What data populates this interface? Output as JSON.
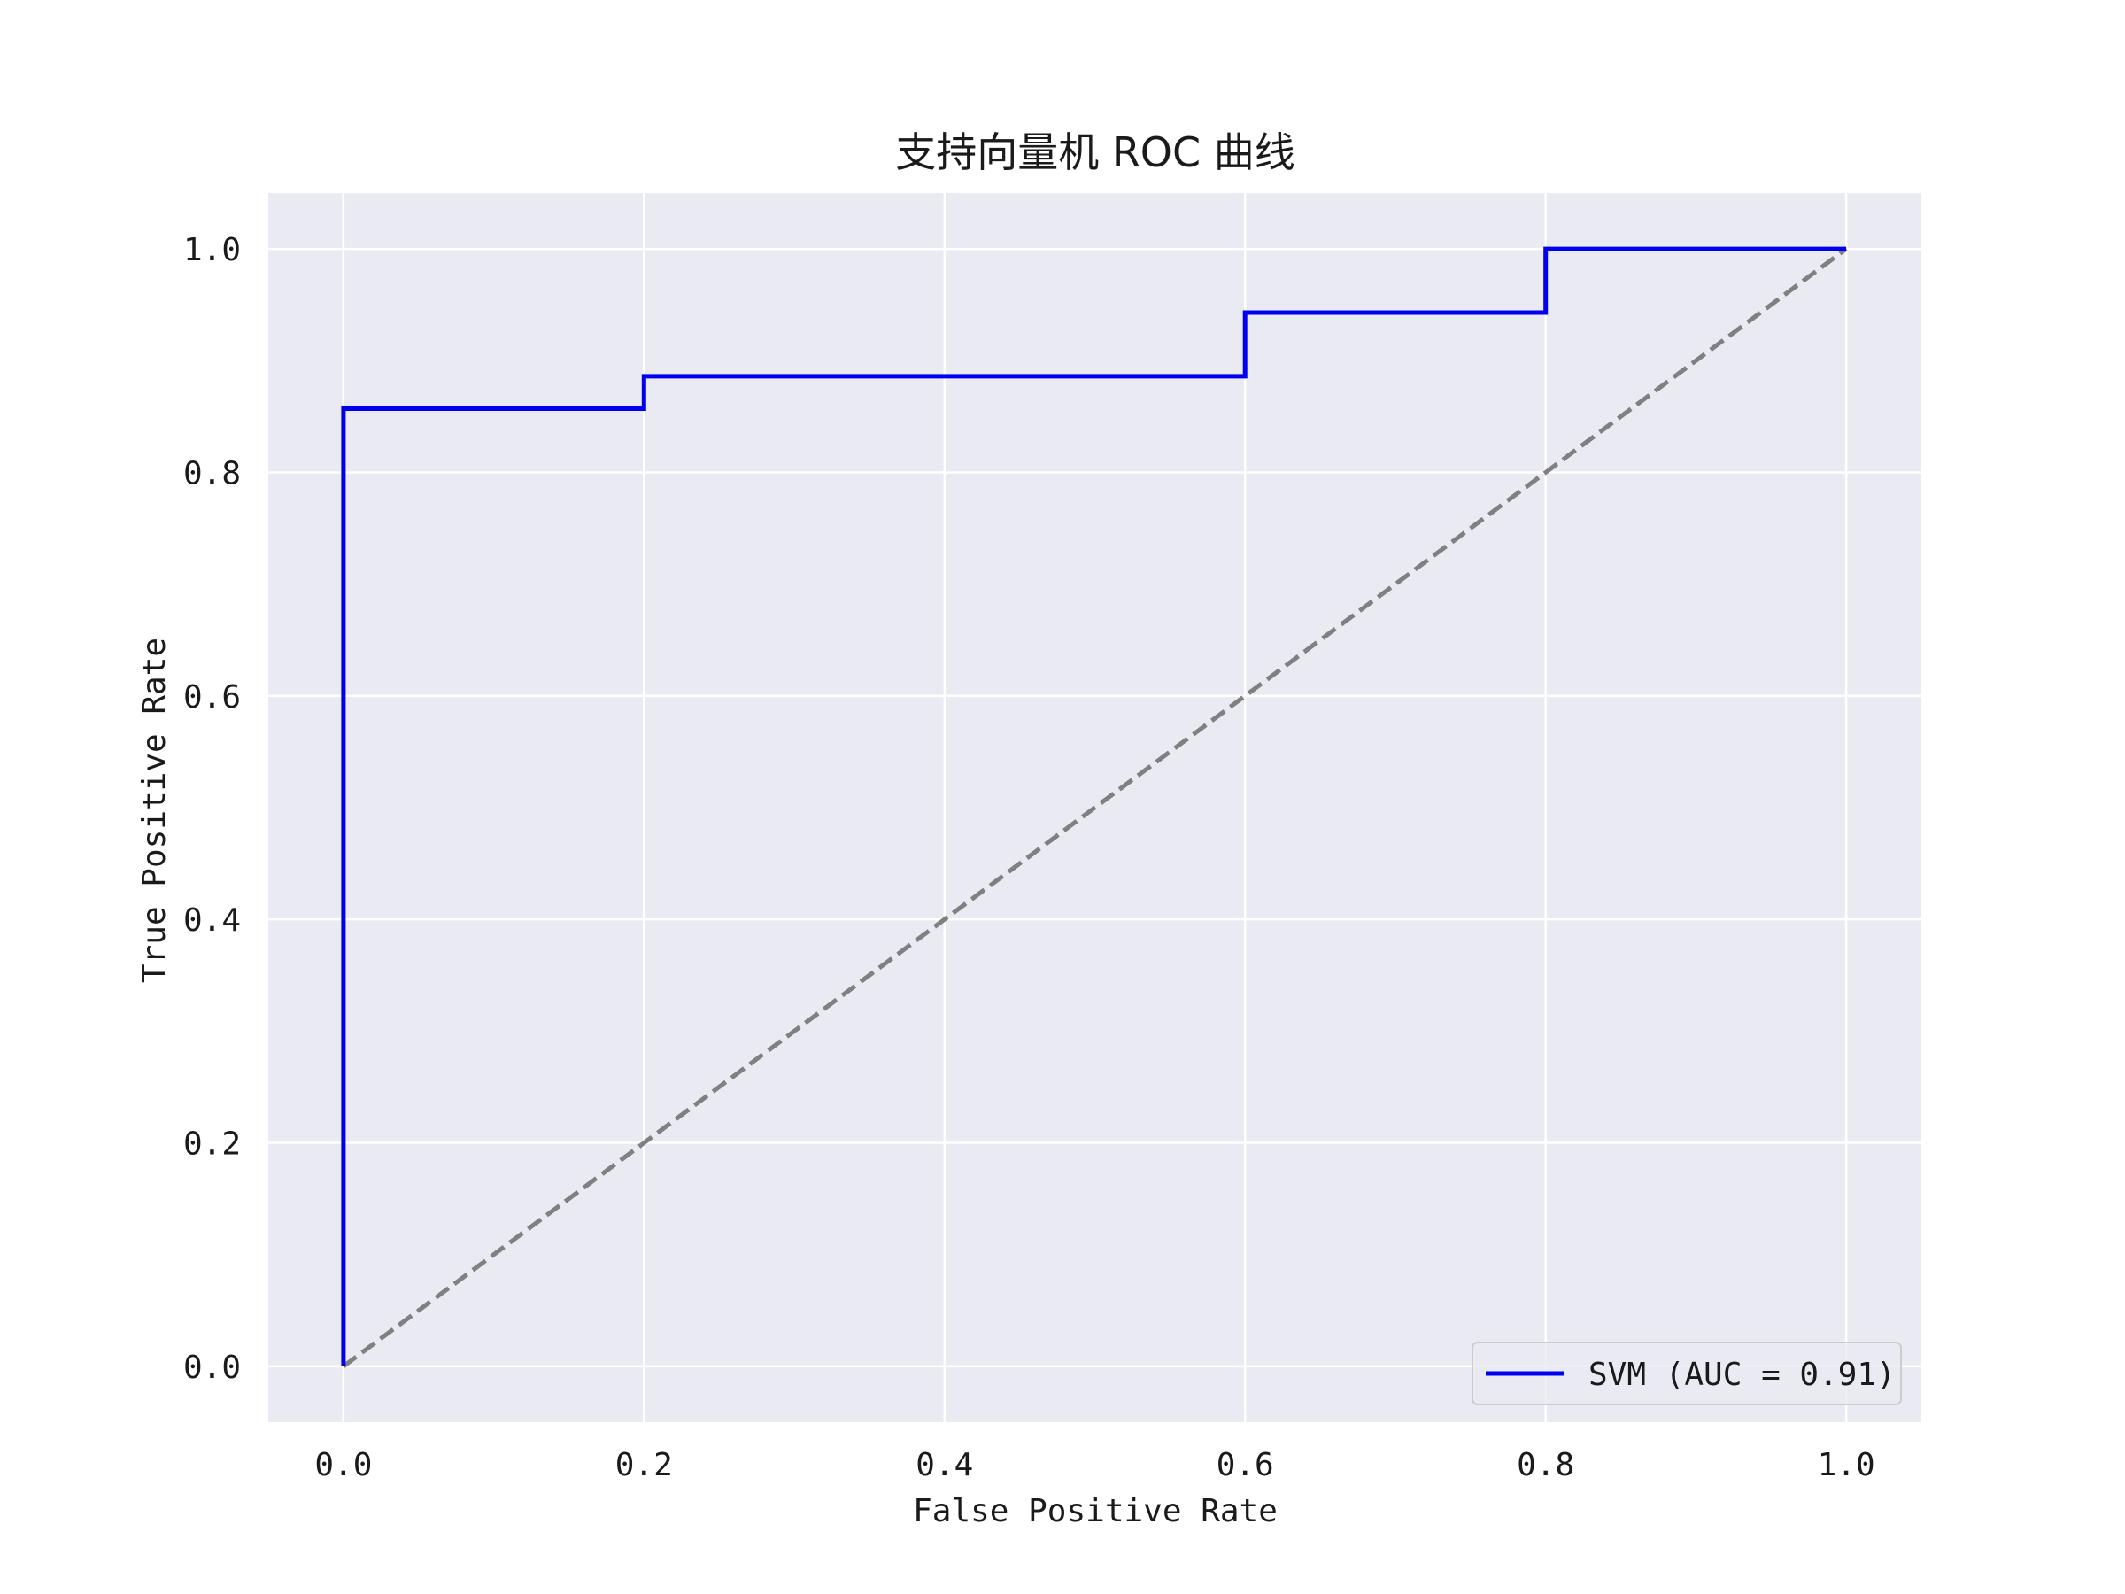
{
  "chart_data": {
    "type": "line",
    "title": "支持向量机 ROC 曲线",
    "xlabel": "False Positive Rate",
    "ylabel": "True Positive Rate",
    "xlim": [
      -0.05,
      1.05
    ],
    "ylim": [
      -0.05,
      1.05
    ],
    "xticks": [
      0.0,
      0.2,
      0.4,
      0.6,
      0.8,
      1.0
    ],
    "yticks": [
      0.0,
      0.2,
      0.4,
      0.6,
      0.8,
      1.0
    ],
    "xtick_labels": [
      "0.0",
      "0.2",
      "0.4",
      "0.6",
      "0.8",
      "1.0"
    ],
    "ytick_labels": [
      "0.0",
      "0.2",
      "0.4",
      "0.6",
      "0.8",
      "1.0"
    ],
    "grid": true,
    "background_color": "#eaeaf2",
    "grid_color": "#ffffff",
    "legend_position": "lower right",
    "series": [
      {
        "name": "SVM (AUC = 0.91)",
        "color": "#0000ee",
        "style": "solid",
        "step": true,
        "x": [
          0.0,
          0.0,
          0.2,
          0.2,
          0.6,
          0.6,
          0.8,
          0.8,
          1.0
        ],
        "y": [
          0.0,
          0.857,
          0.857,
          0.886,
          0.886,
          0.943,
          0.943,
          1.0,
          1.0
        ]
      },
      {
        "color": "#808080",
        "style": "dashed",
        "x": [
          0.0,
          1.0
        ],
        "y": [
          0.0,
          1.0
        ]
      }
    ]
  }
}
